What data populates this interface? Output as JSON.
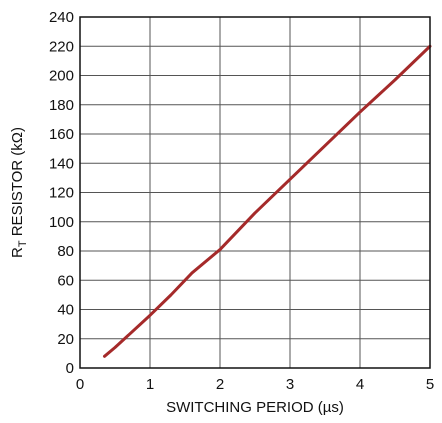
{
  "chart_data": {
    "type": "line",
    "xlabel": "SWITCHING PERIOD (µs)",
    "ylabel_main": "R",
    "ylabel_sub": "T",
    "ylabel_rest": " RESISTOR (kΩ)",
    "xlim": [
      0,
      5
    ],
    "ylim": [
      0,
      240
    ],
    "x_ticks": [
      0,
      1,
      2,
      3,
      4,
      5
    ],
    "y_ticks": [
      0,
      20,
      40,
      60,
      80,
      100,
      120,
      140,
      160,
      180,
      200,
      220,
      240
    ],
    "grid": true,
    "series": [
      {
        "color": "#a52a2a",
        "x": [
          0.35,
          0.5,
          1.0,
          1.3,
          1.6,
          2.0,
          2.5,
          3.0,
          3.5,
          4.0,
          4.5,
          5.0
        ],
        "y": [
          8,
          14,
          36,
          50,
          65,
          81,
          106,
          129,
          152,
          175,
          197,
          220
        ]
      }
    ]
  }
}
